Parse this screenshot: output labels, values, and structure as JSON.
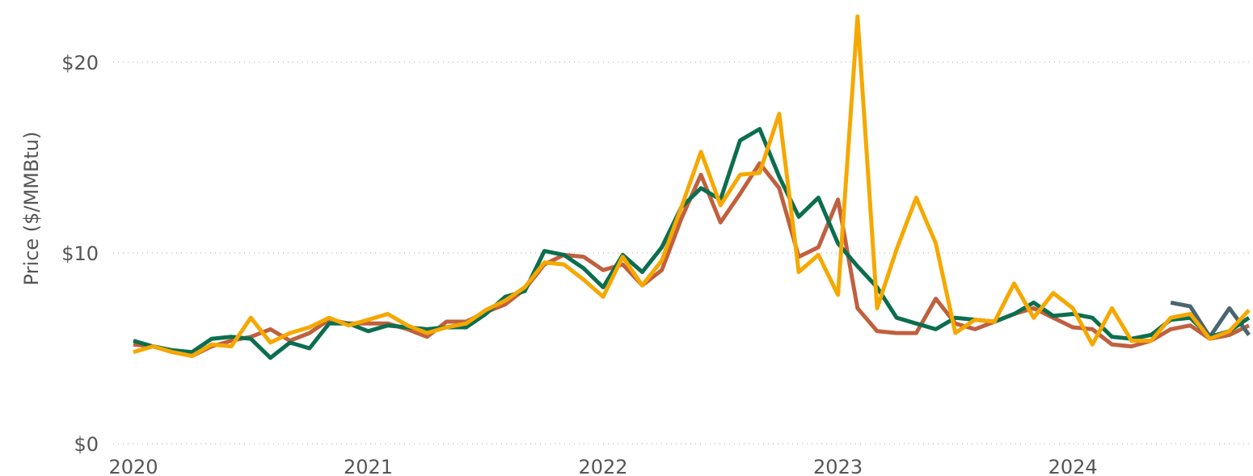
{
  "chart_data": {
    "type": "line",
    "y_label": "Price ($/MMBtu)",
    "x": [
      2020,
      2020.0833,
      2020.1667,
      2020.25,
      2020.3333,
      2020.4167,
      2020.5,
      2020.5833,
      2020.6667,
      2020.75,
      2020.8333,
      2020.9167,
      2021,
      2021.0833,
      2021.1667,
      2021.25,
      2021.3333,
      2021.4167,
      2021.5,
      2021.5833,
      2021.6667,
      2021.75,
      2021.8333,
      2021.9167,
      2022,
      2022.0833,
      2022.1667,
      2022.25,
      2022.3333,
      2022.4167,
      2022.5,
      2022.5833,
      2022.6667,
      2022.75,
      2022.8333,
      2022.9167,
      2023,
      2023.0833,
      2023.1667,
      2023.25,
      2023.3333,
      2023.4167,
      2023.5,
      2023.5833,
      2023.6667,
      2023.75,
      2023.8333,
      2023.9167,
      2024,
      2024.0833,
      2024.1667,
      2024.25,
      2024.3333,
      2024.4167,
      2024.5,
      2024.5833,
      2024.6667,
      2024.75
    ],
    "series": [
      {
        "color": "#c0603f",
        "values": [
          5.2,
          5.1,
          4.8,
          4.6,
          5.1,
          5.4,
          5.6,
          6.0,
          5.4,
          5.8,
          6.5,
          6.3,
          6.3,
          6.3,
          6.0,
          5.6,
          6.4,
          6.4,
          6.9,
          7.3,
          8.1,
          9.4,
          9.9,
          9.8,
          9.1,
          9.4,
          8.3,
          9.1,
          11.8,
          14.1,
          11.6,
          13.1,
          14.7,
          13.4,
          9.8,
          10.3,
          12.8,
          7.1,
          5.9,
          5.8,
          5.8,
          7.6,
          6.3,
          6.0,
          6.4,
          6.8,
          7.1,
          6.6,
          6.1,
          6.0,
          5.2,
          5.1,
          5.4,
          6.0,
          6.2,
          5.5,
          5.7,
          6.2
        ]
      },
      {
        "color": "#4a6670",
        "values": [
          null,
          null,
          null,
          null,
          null,
          null,
          null,
          null,
          null,
          null,
          null,
          null,
          null,
          null,
          null,
          null,
          null,
          null,
          null,
          null,
          null,
          null,
          null,
          null,
          null,
          null,
          null,
          null,
          null,
          null,
          null,
          null,
          null,
          null,
          null,
          null,
          null,
          null,
          null,
          null,
          null,
          null,
          null,
          null,
          null,
          null,
          null,
          null,
          null,
          null,
          null,
          null,
          null,
          7.4,
          7.2,
          5.6,
          7.1,
          5.7
        ]
      },
      {
        "color": "#0b6e4f",
        "values": [
          5.4,
          5.1,
          4.9,
          4.8,
          5.5,
          5.6,
          5.5,
          4.5,
          5.3,
          5.0,
          6.3,
          6.3,
          5.9,
          6.2,
          6.1,
          6.0,
          6.1,
          6.1,
          6.8,
          7.7,
          8.0,
          10.1,
          9.9,
          9.2,
          8.2,
          9.9,
          9.0,
          10.3,
          12.4,
          13.4,
          12.8,
          15.9,
          16.5,
          14.0,
          11.9,
          12.9,
          10.5,
          9.3,
          8.2,
          6.6,
          6.3,
          6.0,
          6.6,
          6.5,
          6.4,
          6.8,
          7.4,
          6.7,
          6.8,
          6.6,
          5.6,
          5.5,
          5.7,
          6.5,
          6.6,
          5.6,
          5.9,
          6.6
        ]
      },
      {
        "color": "#f5a800",
        "values": [
          4.8,
          5.1,
          4.8,
          4.6,
          5.2,
          5.1,
          6.6,
          5.3,
          5.8,
          6.1,
          6.6,
          6.2,
          6.5,
          6.8,
          6.2,
          5.8,
          6.1,
          6.3,
          7.0,
          7.5,
          8.2,
          9.5,
          9.4,
          8.6,
          7.7,
          9.8,
          8.3,
          9.6,
          12.4,
          15.3,
          12.5,
          14.1,
          14.2,
          17.3,
          9.0,
          9.9,
          7.8,
          22.4,
          7.1,
          10.2,
          12.9,
          10.5,
          5.8,
          6.5,
          6.4,
          8.4,
          6.6,
          7.9,
          7.1,
          5.2,
          7.1,
          5.4,
          5.4,
          6.6,
          6.8,
          5.5,
          5.9,
          7.0
        ]
      }
    ],
    "xlim": [
      2020,
      2024.75
    ],
    "xticks": [
      2020,
      2021,
      2022,
      2023,
      2024
    ],
    "ylim": [
      0,
      20
    ],
    "yticks": [
      {
        "value": 0,
        "label": "$0"
      },
      {
        "value": 10,
        "label": "$10"
      },
      {
        "value": 20,
        "label": "$20"
      }
    ],
    "grid": true
  }
}
